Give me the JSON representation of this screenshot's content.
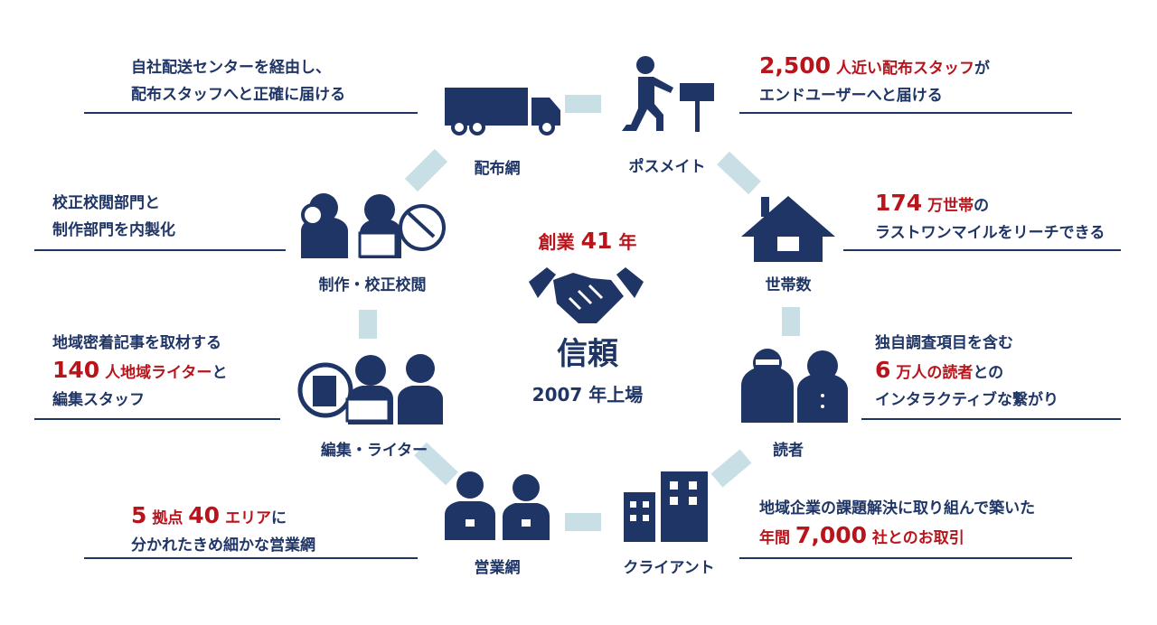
{
  "colors": {
    "navy": "#1f3566",
    "red": "#b8141c",
    "connector": "#c9dfe6"
  },
  "center": {
    "founded_prefix": "創業",
    "founded_years": "41",
    "founded_suffix": "年",
    "title": "信頼",
    "listed": "2007 年上場",
    "icon": "handshake-icon"
  },
  "nodes": [
    {
      "label": "配布網",
      "icon": "truck-icon"
    },
    {
      "label": "ポスメイト",
      "icon": "mail-delivery-person-icon"
    },
    {
      "label": "世帯数",
      "icon": "house-icon"
    },
    {
      "label": "読者",
      "icon": "readers-icon"
    },
    {
      "label": "クライアント",
      "icon": "buildings-icon"
    },
    {
      "label": "営業網",
      "icon": "sales-staff-icon"
    },
    {
      "label": "編集・ライター",
      "icon": "editors-writers-icon"
    },
    {
      "label": "制作・校正校閲",
      "icon": "production-proofreading-icon"
    }
  ],
  "blocks": [
    {
      "lines": [
        [
          {
            "t": "自社配送センターを経由し、"
          }
        ],
        [
          {
            "t": "配布スタッフへと正確に届ける"
          }
        ]
      ]
    },
    {
      "lines": [
        [
          {
            "t": "2,500",
            "r": true,
            "b": true
          },
          {
            "t": " 人近い配布スタッフ",
            "r": true
          },
          {
            "t": "が"
          }
        ],
        [
          {
            "t": "エンドユーザーへと届ける"
          }
        ]
      ]
    },
    {
      "lines": [
        [
          {
            "t": "174",
            "r": true,
            "b": true
          },
          {
            "t": " 万世帯",
            "r": true
          },
          {
            "t": "の"
          }
        ],
        [
          {
            "t": "ラストワンマイルをリーチできる"
          }
        ]
      ]
    },
    {
      "lines": [
        [
          {
            "t": "独自調査項目を含む"
          }
        ],
        [
          {
            "t": "6",
            "r": true,
            "b": true
          },
          {
            "t": " 万人の読者",
            "r": true
          },
          {
            "t": "との"
          }
        ],
        [
          {
            "t": "インタラクティブな繋がり"
          }
        ]
      ]
    },
    {
      "lines": [
        [
          {
            "t": "地域企業の課題解決に取り組んで築いた"
          }
        ],
        [
          {
            "t": "年間 ",
            "r": true
          },
          {
            "t": "7,000",
            "r": true,
            "b": true
          },
          {
            "t": " 社とのお取引",
            "r": true
          }
        ]
      ]
    },
    {
      "lines": [
        [
          {
            "t": "5",
            "r": true,
            "b": true
          },
          {
            "t": " 拠点 ",
            "r": true
          },
          {
            "t": "40",
            "r": true,
            "b": true
          },
          {
            "t": " エリア",
            "r": true
          },
          {
            "t": "に"
          }
        ],
        [
          {
            "t": "分かれたきめ細かな営業網"
          }
        ]
      ]
    },
    {
      "lines": [
        [
          {
            "t": "地域密着記事を取材する"
          }
        ],
        [
          {
            "t": "140",
            "r": true,
            "b": true
          },
          {
            "t": " 人地域ライター",
            "r": true
          },
          {
            "t": "と"
          }
        ],
        [
          {
            "t": "編集スタッフ"
          }
        ]
      ]
    },
    {
      "lines": [
        [
          {
            "t": "校正校閲部門と"
          }
        ],
        [
          {
            "t": "制作部門を内製化"
          }
        ]
      ]
    }
  ]
}
